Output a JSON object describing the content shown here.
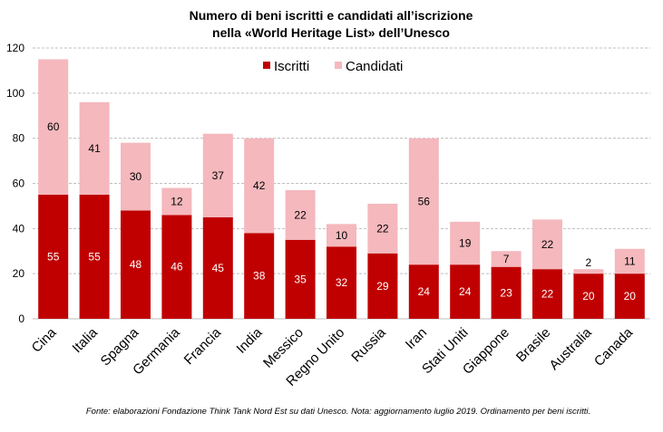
{
  "chart_data": {
    "type": "bar",
    "stacked": true,
    "title": "Numero di beni iscritti e candidati all’iscrizione",
    "subtitle": "nella «World Heritage List» dell’Unesco",
    "categories": [
      "Cina",
      "Italia",
      "Spagna",
      "Germania",
      "Francia",
      "India",
      "Messico",
      "Regno Unito",
      "Russia",
      "Iran",
      "Stati Uniti",
      "Giappone",
      "Brasile",
      "Australia",
      "Canada"
    ],
    "series": [
      {
        "name": "Iscritti",
        "color": "#c00000",
        "values": [
          55,
          55,
          48,
          46,
          45,
          38,
          35,
          32,
          29,
          24,
          24,
          23,
          22,
          20,
          20
        ]
      },
      {
        "name": "Candidati",
        "color": "#f4b8bd",
        "values": [
          60,
          41,
          30,
          12,
          37,
          42,
          22,
          10,
          22,
          56,
          19,
          7,
          22,
          2,
          11
        ]
      }
    ],
    "ylim": [
      0,
      120
    ],
    "yticks": [
      0,
      20,
      40,
      60,
      80,
      100,
      120
    ],
    "grid": true,
    "legend_position": "top-center",
    "footnote": "Fonte: elaborazioni Fondazione Think Tank Nord Est su dati Unesco. Nota: aggiornamento luglio 2019. Ordinamento per beni iscritti."
  }
}
